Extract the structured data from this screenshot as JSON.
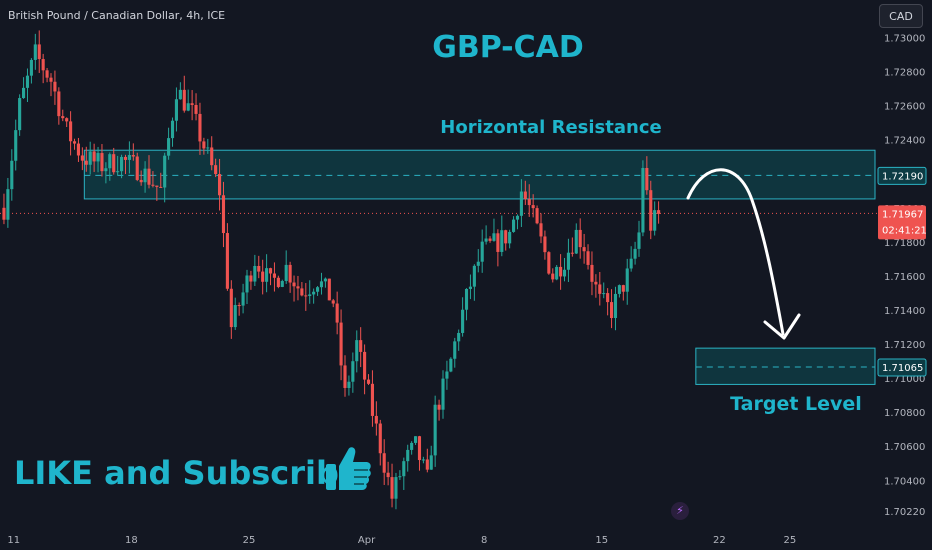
{
  "header": {
    "symbol_title": "British Pound / Canadian Dollar, 4h, ICE",
    "currency_button": "CAD"
  },
  "annotations": {
    "pair_title": "GBP-CAD",
    "resistance_label": "Horizontal Resistance",
    "target_label": "Target Level",
    "cta": "LIKE and Subscribe",
    "thumbs_icon": "thumbs-up-icon",
    "bolt_icon": "lightning-icon"
  },
  "colors": {
    "background": "#131722",
    "bull": "#26a69a",
    "bear": "#ef5350",
    "zone_fill": "#0d4a52",
    "zone_border": "#2bb3c4",
    "annotation_text": "#1fb5cc",
    "arrow": "#ffffff"
  },
  "chart_data": {
    "type": "candlestick",
    "title": "British Pound / Canadian Dollar, 4h, ICE",
    "ylim": [
      1.7012,
      1.7322
    ],
    "yticks": [
      "1.73000",
      "1.72800",
      "1.72600",
      "1.72400",
      "1.72200",
      "1.72000",
      "1.71800",
      "1.71600",
      "1.71400",
      "1.71200",
      "1.71000",
      "1.70800",
      "1.70600",
      "1.70400",
      "1.70220"
    ],
    "xticks": [
      {
        "label": "11",
        "bar": 3
      },
      {
        "label": "18",
        "bar": 33
      },
      {
        "label": "25",
        "bar": 63
      },
      {
        "label": "Apr",
        "bar": 93
      },
      {
        "label": "8",
        "bar": 123
      },
      {
        "label": "15",
        "bar": 153
      },
      {
        "label": "22",
        "bar": 183
      },
      {
        "label": "25",
        "bar": 201
      }
    ],
    "resistance_zone": {
      "low": 1.72052,
      "high": 1.72338,
      "mid": 1.7219,
      "start_bar": 21,
      "end_bar": 216
    },
    "target_zone": {
      "low": 1.70963,
      "high": 1.71176,
      "mid": 1.71065,
      "start_bar": 177,
      "end_bar": 216
    },
    "price_labels": [
      {
        "value": 1.7219,
        "text": "1.72190",
        "style": "zone"
      },
      {
        "value": 1.71967,
        "text": "1.71967",
        "sub": "02:41:21",
        "style": "current"
      },
      {
        "value": 1.71065,
        "text": "1.71065",
        "style": "zone"
      }
    ],
    "current_price": 1.71967,
    "close_path": [
      [
        0,
        1.72
      ],
      [
        4,
        1.726
      ],
      [
        8,
        1.729
      ],
      [
        12,
        1.7275
      ],
      [
        16,
        1.7245
      ],
      [
        20,
        1.723
      ],
      [
        25,
        1.7225
      ],
      [
        30,
        1.7228
      ],
      [
        35,
        1.7222
      ],
      [
        40,
        1.721
      ],
      [
        44,
        1.727
      ],
      [
        48,
        1.7255
      ],
      [
        52,
        1.723
      ],
      [
        55,
        1.721
      ],
      [
        58,
        1.713
      ],
      [
        61,
        1.715
      ],
      [
        64,
        1.717
      ],
      [
        68,
        1.7155
      ],
      [
        72,
        1.7165
      ],
      [
        76,
        1.715
      ],
      [
        80,
        1.7158
      ],
      [
        84,
        1.7145
      ],
      [
        87,
        1.709
      ],
      [
        90,
        1.712
      ],
      [
        93,
        1.709
      ],
      [
        96,
        1.706
      ],
      [
        99,
        1.703
      ],
      [
        102,
        1.705
      ],
      [
        105,
        1.706
      ],
      [
        108,
        1.704
      ],
      [
        110,
        1.708
      ],
      [
        113,
        1.71
      ],
      [
        116,
        1.713
      ],
      [
        119,
        1.7155
      ],
      [
        122,
        1.7175
      ],
      [
        126,
        1.718
      ],
      [
        129,
        1.7185
      ],
      [
        132,
        1.721
      ],
      [
        134,
        1.72
      ],
      [
        137,
        1.718
      ],
      [
        140,
        1.716
      ],
      [
        143,
        1.717
      ],
      [
        146,
        1.7185
      ],
      [
        148,
        1.7178
      ],
      [
        150,
        1.716
      ],
      [
        152,
        1.7145
      ],
      [
        155,
        1.714
      ],
      [
        158,
        1.7155
      ],
      [
        160,
        1.7165
      ],
      [
        162,
        1.7185
      ],
      [
        163,
        1.7225
      ],
      [
        165,
        1.719
      ],
      [
        167,
        1.7195
      ]
    ]
  }
}
